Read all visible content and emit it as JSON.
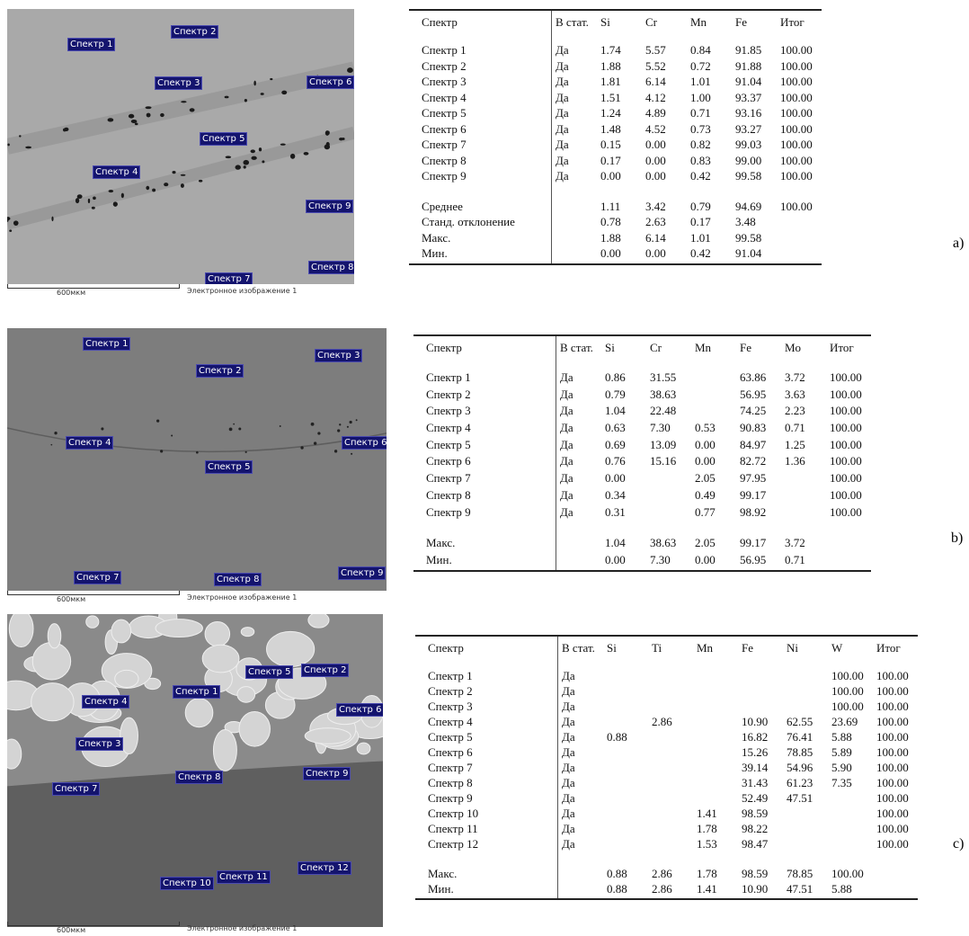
{
  "panels": [
    {
      "label": "a)",
      "image": {
        "spectra": [
          "Спектр 1",
          "Спектр 2",
          "Спектр 3",
          "Спектр 4",
          "Спектр 5",
          "Спектр 6",
          "Спектр 7",
          "Спектр 8",
          "Спектр 9"
        ],
        "scale": "600мкм",
        "caption": "Электронное изображение 1"
      },
      "table": {
        "header": [
          "Спектр",
          "В стат.",
          "Si",
          "Cr",
          "Mn",
          "Fe",
          "Итог"
        ],
        "rows": [
          [
            "Спектр 1",
            "Да",
            "1.74",
            "5.57",
            "0.84",
            "91.85",
            "100.00"
          ],
          [
            "Спектр 2",
            "Да",
            "1.88",
            "5.52",
            "0.72",
            "91.88",
            "100.00"
          ],
          [
            "Спектр 3",
            "Да",
            "1.81",
            "6.14",
            "1.01",
            "91.04",
            "100.00"
          ],
          [
            "Спектр 4",
            "Да",
            "1.51",
            "4.12",
            "1.00",
            "93.37",
            "100.00"
          ],
          [
            "Спектр 5",
            "Да",
            "1.24",
            "4.89",
            "0.71",
            "93.16",
            "100.00"
          ],
          [
            "Спектр 6",
            "Да",
            "1.48",
            "4.52",
            "0.73",
            "93.27",
            "100.00"
          ],
          [
            "Спектр 7",
            "Да",
            "0.15",
            "0.00",
            "0.82",
            "99.03",
            "100.00"
          ],
          [
            "Спектр 8",
            "Да",
            "0.17",
            "0.00",
            "0.83",
            "99.00",
            "100.00"
          ],
          [
            "Спектр 9",
            "Да",
            "0.00",
            "0.00",
            "0.42",
            "99.58",
            "100.00"
          ]
        ],
        "summary": [
          [
            "Среднее",
            null,
            "1.11",
            "3.42",
            "0.79",
            "94.69",
            "100.00"
          ],
          [
            "Станд. отклонение",
            null,
            "0.78",
            "2.63",
            "0.17",
            "3.48",
            null
          ],
          [
            "Макс.",
            null,
            "1.88",
            "6.14",
            "1.01",
            "99.58",
            null
          ],
          [
            "Мин.",
            null,
            "0.00",
            "0.00",
            "0.42",
            "91.04",
            null
          ]
        ]
      }
    },
    {
      "label": "b)",
      "image": {
        "spectra": [
          "Спектр 1",
          "Спектр 2",
          "Спектр 3",
          "Спектр 4",
          "Спектр 5",
          "Спектр 6",
          "Спектр 7",
          "Спектр 8",
          "Спектр 9"
        ],
        "scale": "600мкм",
        "caption": "Электронное изображение 1"
      },
      "table": {
        "header": [
          "Спектр",
          "В стат.",
          "Si",
          "Cr",
          "Mn",
          "Fe",
          "Mo",
          "Итог"
        ],
        "rows": [
          [
            "Спектр 1",
            "Да",
            "0.86",
            "31.55",
            null,
            "63.86",
            "3.72",
            "100.00"
          ],
          [
            "Спектр 2",
            "Да",
            "0.79",
            "38.63",
            null,
            "56.95",
            "3.63",
            "100.00"
          ],
          [
            "Спектр 3",
            "Да",
            "1.04",
            "22.48",
            null,
            "74.25",
            "2.23",
            "100.00"
          ],
          [
            "Спектр 4",
            "Да",
            "0.63",
            "7.30",
            "0.53",
            "90.83",
            "0.71",
            "100.00"
          ],
          [
            "Спектр 5",
            "Да",
            "0.69",
            "13.09",
            "0.00",
            "84.97",
            "1.25",
            "100.00"
          ],
          [
            "Спектр 6",
            "Да",
            "0.76",
            "15.16",
            "0.00",
            "82.72",
            "1.36",
            "100.00"
          ],
          [
            "Спектр 7",
            "Да",
            "0.00",
            null,
            "2.05",
            "97.95",
            null,
            "100.00"
          ],
          [
            "Спектр 8",
            "Да",
            "0.34",
            null,
            "0.49",
            "99.17",
            null,
            "100.00"
          ],
          [
            "Спектр 9",
            "Да",
            "0.31",
            null,
            "0.77",
            "98.92",
            null,
            "100.00"
          ]
        ],
        "summary": [
          [
            "Макс.",
            null,
            "1.04",
            "38.63",
            "2.05",
            "99.17",
            "3.72",
            null
          ],
          [
            "Мин.",
            null,
            "0.00",
            "7.30",
            "0.00",
            "56.95",
            "0.71",
            null
          ]
        ]
      }
    },
    {
      "label": "c)",
      "image": {
        "spectra": [
          "Спектр 1",
          "Спектр 2",
          "Спектр 3",
          "Спектр 4",
          "Спектр 5",
          "Спектр 6",
          "Спектр 7",
          "Спектр 8",
          "Спектр 9",
          "Спектр 10",
          "Спектр 11",
          "Спектр 12"
        ],
        "scale": "600мкм",
        "caption": "Электронное изображение 1"
      },
      "table": {
        "header": [
          "Спектр",
          "В стат.",
          "Si",
          "Ti",
          "Mn",
          "Fe",
          "Ni",
          "W",
          "Итог"
        ],
        "rows": [
          [
            "Спектр 1",
            "Да",
            null,
            null,
            null,
            null,
            null,
            "100.00",
            "100.00"
          ],
          [
            "Спектр 2",
            "Да",
            null,
            null,
            null,
            null,
            null,
            "100.00",
            "100.00"
          ],
          [
            "Спектр 3",
            "Да",
            null,
            null,
            null,
            null,
            null,
            "100.00",
            "100.00"
          ],
          [
            "Спектр 4",
            "Да",
            null,
            "2.86",
            null,
            "10.90",
            "62.55",
            "23.69",
            "100.00"
          ],
          [
            "Спектр 5",
            "Да",
            "0.88",
            null,
            null,
            "16.82",
            "76.41",
            "5.88",
            "100.00"
          ],
          [
            "Спектр 6",
            "Да",
            null,
            null,
            null,
            "15.26",
            "78.85",
            "5.89",
            "100.00"
          ],
          [
            "Спектр 7",
            "Да",
            null,
            null,
            null,
            "39.14",
            "54.96",
            "5.90",
            "100.00"
          ],
          [
            "Спектр 8",
            "Да",
            null,
            null,
            null,
            "31.43",
            "61.23",
            "7.35",
            "100.00"
          ],
          [
            "Спектр 9",
            "Да",
            null,
            null,
            null,
            "52.49",
            "47.51",
            null,
            "100.00"
          ],
          [
            "Спектр 10",
            "Да",
            null,
            null,
            "1.41",
            "98.59",
            null,
            null,
            "100.00"
          ],
          [
            "Спектр 11",
            "Да",
            null,
            null,
            "1.78",
            "98.22",
            null,
            null,
            "100.00"
          ],
          [
            "Спектр 12",
            "Да",
            null,
            null,
            "1.53",
            "98.47",
            null,
            null,
            "100.00"
          ]
        ],
        "summary": [
          [
            "Макс.",
            null,
            "0.88",
            "2.86",
            "1.78",
            "98.59",
            "78.85",
            "100.00",
            null
          ],
          [
            "Мин.",
            null,
            "0.88",
            "2.86",
            "1.41",
            "10.90",
            "47.51",
            "5.88",
            null
          ]
        ]
      }
    }
  ]
}
